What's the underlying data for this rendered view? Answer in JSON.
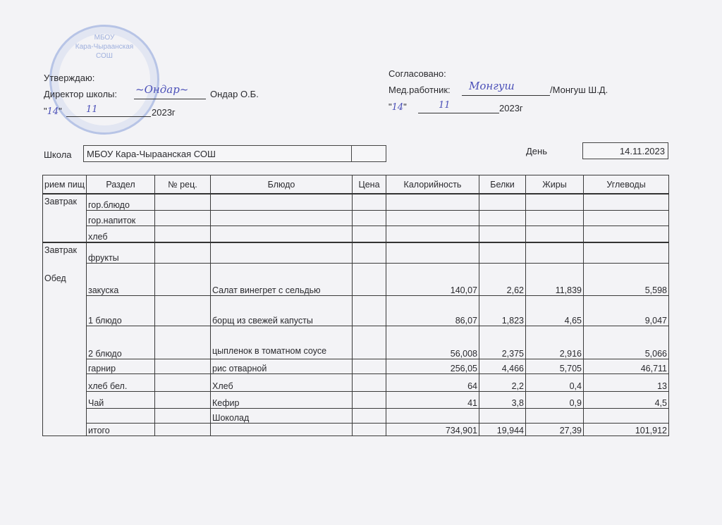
{
  "stamp": {
    "lines": [
      "МБОУ",
      "Кара-Чыраанская",
      "СОШ"
    ]
  },
  "approve": {
    "title": "Утверждаю:",
    "role": "Директор школы:",
    "signature": "Ондар",
    "name": "Ондар О.Б.",
    "day": "14",
    "month": "11",
    "year": "2023г"
  },
  "agree": {
    "title": "Согласовано:",
    "role": "Мед.работник:",
    "signature": "Монгуш",
    "name": "/Монгуш Ш.Д.",
    "day": "14",
    "month": "11",
    "year": "2023г"
  },
  "school": {
    "label": "Школа",
    "value": "МБОУ Кара-Чыраанская СОШ"
  },
  "day": {
    "label": "День",
    "value": "14.11.2023"
  },
  "table": {
    "headers": [
      "рием пищ",
      "Раздел",
      "№ рец.",
      "Блюдо",
      "Цена",
      "Калорийность",
      "Белки",
      "Жиры",
      "Углеводы"
    ],
    "rows": [
      {
        "meal": "Завтрак",
        "section": "гор.блюдо",
        "rec": "",
        "dish": "",
        "price": "",
        "kcal": "",
        "protein": "",
        "fat": "",
        "carbs": ""
      },
      {
        "meal": "",
        "section": "гор.напиток",
        "rec": "",
        "dish": "",
        "price": "",
        "kcal": "",
        "protein": "",
        "fat": "",
        "carbs": ""
      },
      {
        "meal": "",
        "section": "хлеб",
        "rec": "",
        "dish": "",
        "price": "",
        "kcal": "",
        "protein": "",
        "fat": "",
        "carbs": ""
      },
      {
        "meal": "Завтрак",
        "section": "фрукты",
        "rec": "",
        "dish": "",
        "price": "",
        "kcal": "",
        "protein": "",
        "fat": "",
        "carbs": ""
      },
      {
        "meal": "Обед",
        "section": "закуска",
        "rec": "",
        "dish": "Салат винегрет с сельдью",
        "price": "",
        "kcal": "140,07",
        "protein": "2,62",
        "fat": "11,839",
        "carbs": "5,598"
      },
      {
        "meal": "",
        "section": "1 блюдо",
        "rec": "",
        "dish": "борщ из свежей капусты",
        "price": "",
        "kcal": "86,07",
        "protein": "1,823",
        "fat": "4,65",
        "carbs": "9,047"
      },
      {
        "meal": "",
        "section": "2 блюдо",
        "rec": "",
        "dish": "цыпленок в томатном соусе",
        "price": "",
        "kcal": "56,008",
        "protein": "2,375",
        "fat": "2,916",
        "carbs": "5,066"
      },
      {
        "meal": "",
        "section": "гарнир",
        "rec": "",
        "dish": "рис отварной",
        "price": "",
        "kcal": "256,05",
        "protein": "4,466",
        "fat": "5,705",
        "carbs": "46,711"
      },
      {
        "meal": "",
        "section": "хлеб бел.",
        "rec": "",
        "dish": "Хлеб",
        "price": "",
        "kcal": "64",
        "protein": "2,2",
        "fat": "0,4",
        "carbs": "13"
      },
      {
        "meal": "",
        "section": "Чай",
        "rec": "",
        "dish": "Кефир",
        "price": "",
        "kcal": "41",
        "protein": "3,8",
        "fat": "0,9",
        "carbs": "4,5"
      },
      {
        "meal": "",
        "section": "",
        "rec": "",
        "dish": "Шоколад",
        "price": "",
        "kcal": "",
        "protein": "",
        "fat": "",
        "carbs": ""
      },
      {
        "meal": "",
        "section": "итого",
        "rec": "",
        "dish": "",
        "price": "",
        "kcal": "734,901",
        "protein": "19,944",
        "fat": "27,39",
        "carbs": "101,912"
      }
    ]
  }
}
